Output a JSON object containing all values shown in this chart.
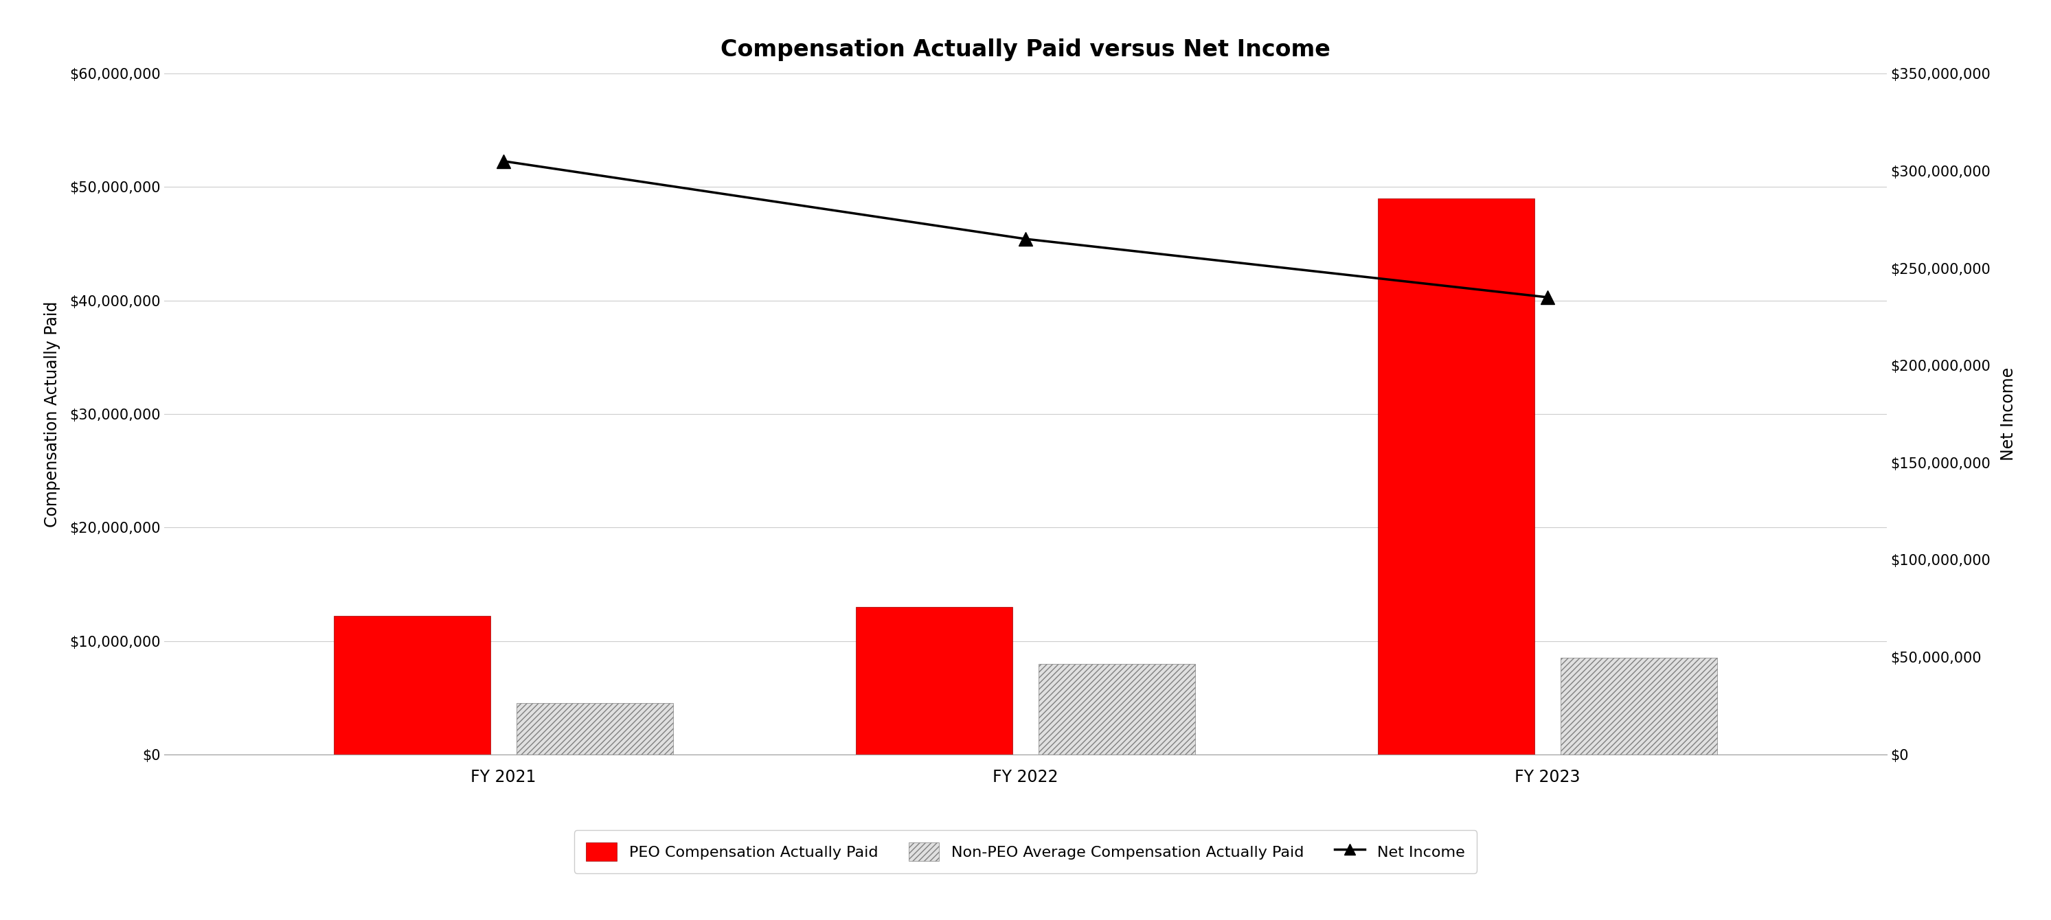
{
  "title": "Compensation Actually Paid versus Net Income",
  "categories": [
    "FY 2021",
    "FY 2022",
    "FY 2023"
  ],
  "peo_values": [
    12200000,
    13000000,
    49000000
  ],
  "non_peo_values": [
    4500000,
    8000000,
    8500000
  ],
  "net_income_values": [
    305000000,
    265000000,
    235000000
  ],
  "left_ylim": [
    0,
    60000000
  ],
  "right_ylim": [
    0,
    350000000
  ],
  "left_yticks": [
    0,
    10000000,
    20000000,
    30000000,
    40000000,
    50000000,
    60000000
  ],
  "right_yticks": [
    0,
    50000000,
    100000000,
    150000000,
    200000000,
    250000000,
    300000000,
    350000000
  ],
  "peo_color": "#FF0000",
  "background_color": "#FFFFFF",
  "bar_width": 0.3,
  "bar_gap": 0.05,
  "xlabel_left": "Compensation Actually Paid",
  "xlabel_right": "Net Income",
  "legend_labels": [
    "PEO Compensation Actually Paid",
    "Non-PEO Average Compensation Actually Paid",
    "Net Income"
  ],
  "title_fontsize": 24,
  "axis_label_fontsize": 17,
  "tick_fontsize": 15,
  "legend_fontsize": 16
}
